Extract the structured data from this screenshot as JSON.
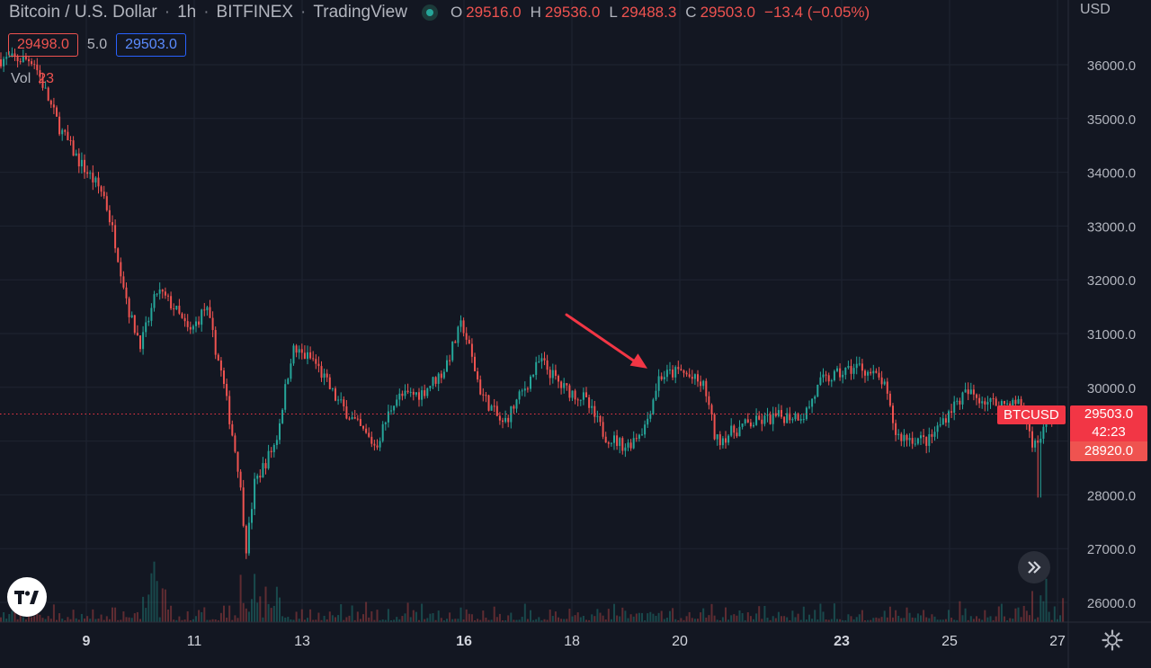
{
  "header": {
    "symbol": "Bitcoin / U.S. Dollar",
    "interval": "1h",
    "exchange": "BITFINEX",
    "source": "TradingView",
    "ohlc": {
      "o_key": "O",
      "o": "29516.0",
      "h_key": "H",
      "h": "29536.0",
      "l_key": "L",
      "l": "29488.3",
      "c_key": "C",
      "c": "29503.0",
      "change": "−13.4 (−0.05%)"
    },
    "bid": "29498.0",
    "spread": "5.0",
    "ask": "29503.0",
    "vol_key": "Vol",
    "vol_value": "23",
    "currency": "USD"
  },
  "price_axis": {
    "labels": [
      "36000.0",
      "35000.0",
      "34000.0",
      "33000.0",
      "32000.0",
      "31000.0",
      "30000.0",
      "29000.0",
      "28000.0",
      "27000.0",
      "26000.0"
    ],
    "current_symbol": "BTCUSD",
    "current_price": "29503.0",
    "countdown": "42:23",
    "low_marker": "28920.0"
  },
  "time_axis": {
    "labels": [
      {
        "text": "9",
        "bold": true
      },
      {
        "text": "11",
        "bold": false
      },
      {
        "text": "13",
        "bold": false
      },
      {
        "text": "16",
        "bold": true
      },
      {
        "text": "18",
        "bold": false
      },
      {
        "text": "20",
        "bold": false
      },
      {
        "text": "23",
        "bold": true
      },
      {
        "text": "25",
        "bold": false
      },
      {
        "text": "27",
        "bold": false
      }
    ]
  },
  "colors": {
    "up": "#26a69a",
    "down": "#ef5350",
    "background": "#131722",
    "grid": "#1f2431",
    "annotation": "#f23645"
  },
  "icons": {
    "logo": "tradingview-logo-icon",
    "scroll": "chevrons-right-icon",
    "settings": "gear-icon"
  },
  "chart_data": {
    "type": "candlestick",
    "y_range": [
      25750,
      36550
    ],
    "current_price": 29503,
    "price_path": [
      {
        "day": 8.0,
        "price": 36100
      },
      {
        "day": 8.3,
        "price": 35300
      },
      {
        "day": 8.5,
        "price": 34800
      },
      {
        "day": 8.85,
        "price": 34200
      },
      {
        "day": 9.3,
        "price": 33600
      },
      {
        "day": 9.5,
        "price": 32800
      },
      {
        "day": 9.8,
        "price": 31300
      },
      {
        "day": 10.0,
        "price": 30800
      },
      {
        "day": 10.3,
        "price": 31800
      },
      {
        "day": 10.6,
        "price": 31500
      },
      {
        "day": 10.9,
        "price": 31000
      },
      {
        "day": 11.2,
        "price": 31500
      },
      {
        "day": 11.5,
        "price": 30200
      },
      {
        "day": 11.8,
        "price": 28500
      },
      {
        "day": 11.95,
        "price": 27000
      },
      {
        "day": 12.1,
        "price": 28200
      },
      {
        "day": 12.5,
        "price": 29000
      },
      {
        "day": 12.8,
        "price": 30700
      },
      {
        "day": 13.2,
        "price": 30500
      },
      {
        "day": 13.6,
        "price": 29800
      },
      {
        "day": 14.0,
        "price": 29300
      },
      {
        "day": 14.35,
        "price": 28900
      },
      {
        "day": 14.7,
        "price": 29800
      },
      {
        "day": 15.2,
        "price": 29900
      },
      {
        "day": 15.6,
        "price": 30300
      },
      {
        "day": 15.95,
        "price": 31200
      },
      {
        "day": 16.3,
        "price": 29900
      },
      {
        "day": 16.7,
        "price": 29300
      },
      {
        "day": 17.0,
        "price": 29800
      },
      {
        "day": 17.4,
        "price": 30500
      },
      {
        "day": 17.8,
        "price": 30000
      },
      {
        "day": 18.2,
        "price": 29800
      },
      {
        "day": 18.6,
        "price": 29100
      },
      {
        "day": 19.0,
        "price": 28900
      },
      {
        "day": 19.35,
        "price": 29300
      },
      {
        "day": 19.6,
        "price": 30200
      },
      {
        "day": 20.0,
        "price": 30300
      },
      {
        "day": 20.45,
        "price": 30000
      },
      {
        "day": 20.65,
        "price": 29000
      },
      {
        "day": 21.2,
        "price": 29300
      },
      {
        "day": 21.8,
        "price": 29450
      },
      {
        "day": 22.3,
        "price": 29500
      },
      {
        "day": 22.6,
        "price": 30100
      },
      {
        "day": 23.3,
        "price": 30400
      },
      {
        "day": 23.75,
        "price": 30100
      },
      {
        "day": 24.0,
        "price": 29100
      },
      {
        "day": 24.6,
        "price": 29000
      },
      {
        "day": 25.0,
        "price": 29600
      },
      {
        "day": 25.3,
        "price": 29900
      },
      {
        "day": 25.8,
        "price": 29700
      },
      {
        "day": 26.3,
        "price": 29700
      },
      {
        "day": 26.55,
        "price": 28900
      },
      {
        "day": 26.9,
        "price": 29500
      },
      {
        "day": 27.3,
        "price": 29300
      }
    ],
    "wick_events": [
      {
        "day": 26.65,
        "low": 27950
      }
    ],
    "arrow_annotation": {
      "from": {
        "day": 17.9,
        "price": 31350
      },
      "to": {
        "day": 19.4,
        "price": 30350
      }
    }
  }
}
